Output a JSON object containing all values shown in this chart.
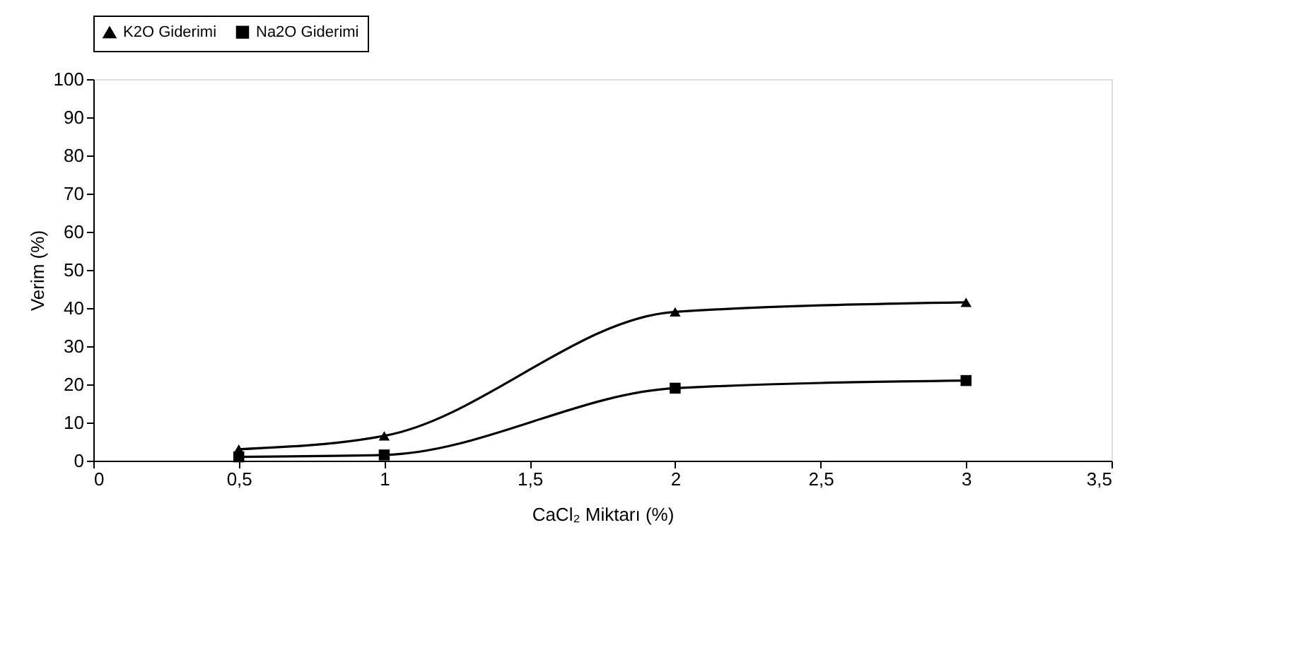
{
  "chart_data": {
    "type": "line",
    "xlabel": "CaCl₂ Miktarı  (%)",
    "ylabel": "Verim (%)",
    "x": [
      0.5,
      1,
      2,
      3
    ],
    "series": [
      {
        "name": "K2O Giderimi",
        "color": "#000000",
        "marker": "triangle",
        "values": [
          3,
          6.5,
          39,
          41.5
        ]
      },
      {
        "name": "Na2O Giderimi",
        "color": "#000000",
        "marker": "square",
        "values": [
          1,
          1.5,
          19,
          21
        ]
      }
    ],
    "xlim": [
      0,
      3.5
    ],
    "xticks": [
      0,
      {
        "value": 0.5,
        "label": "0,5"
      },
      1,
      {
        "value": 1.5,
        "label": "1,5"
      },
      2,
      {
        "value": 2.5,
        "label": "2,5"
      },
      3,
      {
        "value": 3.5,
        "label": "3,5"
      }
    ],
    "ylim": [
      0,
      100
    ],
    "yticks": [
      0,
      10,
      20,
      30,
      40,
      50,
      60,
      70,
      80,
      90,
      100
    ],
    "grid": false,
    "legend": "top",
    "line_style": "solid"
  }
}
